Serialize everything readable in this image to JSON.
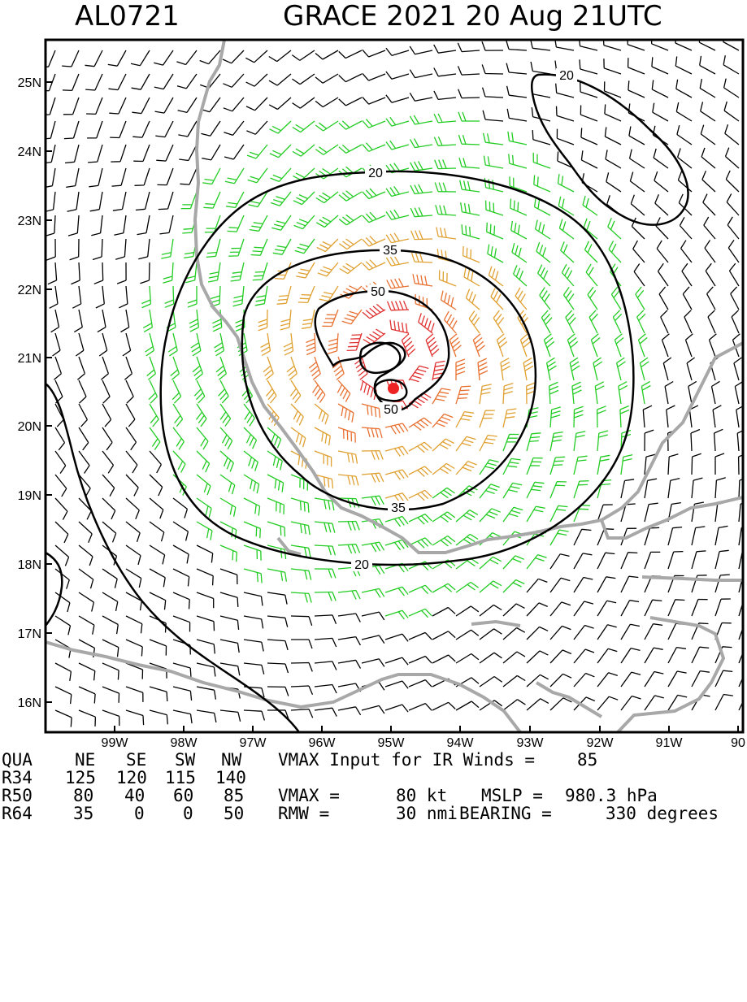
{
  "header": {
    "storm_id": "AL0721",
    "title": "GRACE 2021 20 Aug 21UTC"
  },
  "map": {
    "lon_labels": [
      "99W",
      "98W",
      "97W",
      "96W",
      "95W",
      "94W",
      "93W",
      "92W",
      "91W",
      "90"
    ],
    "lat_labels": [
      "25N",
      "24N",
      "23N",
      "22N",
      "21N",
      "20N",
      "19N",
      "18N",
      "17N",
      "16N"
    ],
    "contour_labels": [
      "20",
      "20",
      "20",
      "35",
      "35",
      "50",
      "50"
    ],
    "colors": {
      "weak_barb": "#000000",
      "ts_barb": "#22cc22",
      "strong_barb": "#e0a030",
      "hurricane_barb": "#e87030",
      "core_barb": "#e03030",
      "coastline": "#a8a8a8",
      "center": "#ee2222"
    }
  },
  "stats": {
    "quad_header": [
      "QUA",
      "NE",
      "SE",
      "SW",
      "NW"
    ],
    "rows": [
      {
        "label": "R34",
        "values": [
          "125",
          "120",
          "115",
          "140"
        ]
      },
      {
        "label": "R50",
        "values": [
          "80",
          "40",
          "60",
          "85"
        ]
      },
      {
        "label": "R64",
        "values": [
          "35",
          "0",
          "0",
          "50"
        ]
      }
    ],
    "vmax_input_label": "VMAX Input for IR Winds =",
    "vmax_input_value": "85",
    "vmax_label": "VMAX =",
    "vmax_value": "80 kt",
    "mslp_label": "MSLP =",
    "mslp_value": "980.3 hPa",
    "rmw_label": "RMW =",
    "rmw_value": "30 nmi",
    "bearing_label": "BEARING =",
    "bearing_value": "330 degrees"
  }
}
